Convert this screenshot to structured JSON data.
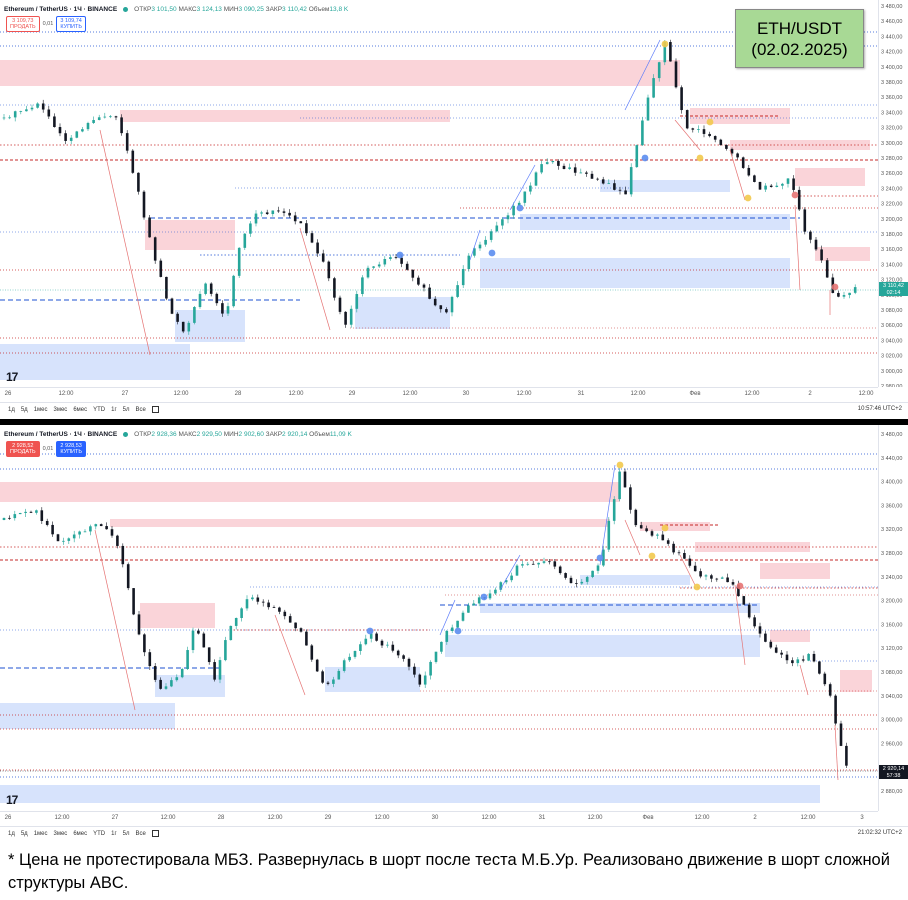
{
  "title_box": {
    "line1": "ETH/USDT",
    "line2": "(02.02.2025)"
  },
  "caption": "* Цена не протестировала МБЗ. Развернулась в шорт после теста М.Б.Ур. Реализовано движение в шорт сложной структуры ABC.",
  "colors": {
    "bull": "#26a69a",
    "bear": "#131722",
    "supply_zone": "#f8c6cc",
    "demand_zone": "#c9d9fb",
    "red_line": "#c62828",
    "blue_line": "#1e50d2",
    "price_badge": "#26a69a",
    "price_badge_bear": "#131722"
  },
  "panels": [
    {
      "symbol": "Ethereum / TetherUS · 1Ч · BINANCE",
      "ohlc": {
        "o_label": "ОТКР",
        "o": "3 101,50",
        "h_label": "МАКС",
        "h": "3 124,13",
        "l_label": "МИН",
        "l": "3 090,25",
        "c_label": "ЗАКР",
        "c": "3 110,42",
        "v_label": "Объем",
        "v": "13,8 K"
      },
      "sell": {
        "price": "3 109,73",
        "label": "ПРОДАТЬ"
      },
      "buy": {
        "price": "3 109,74",
        "label": "КУПИТЬ"
      },
      "spread": "0,01",
      "price_ticks": [
        "3 480,00",
        "3 460,00",
        "3 440,00",
        "3 420,00",
        "3 400,00",
        "3 380,00",
        "3 360,00",
        "3 340,00",
        "3 320,00",
        "3 300,00",
        "3 280,00",
        "3 260,00",
        "3 240,00",
        "3 220,00",
        "3 200,00",
        "3 180,00",
        "3 160,00",
        "3 140,00",
        "3 120,00",
        "3 100,00",
        "3 080,00",
        "3 060,00",
        "3 040,00",
        "3 020,00",
        "3 000,00",
        "2 980,00"
      ],
      "last_price": "3 110,42",
      "countdown": "02:14",
      "x_ticks": [
        {
          "t": "26",
          "x": 8
        },
        {
          "t": "12:00",
          "x": 66
        },
        {
          "t": "27",
          "x": 125
        },
        {
          "t": "12:00",
          "x": 181
        },
        {
          "t": "28",
          "x": 238
        },
        {
          "t": "12:00",
          "x": 296
        },
        {
          "t": "29",
          "x": 352
        },
        {
          "t": "12:00",
          "x": 410
        },
        {
          "t": "30",
          "x": 466
        },
        {
          "t": "12:00",
          "x": 524
        },
        {
          "t": "31",
          "x": 581
        },
        {
          "t": "12:00",
          "x": 638
        },
        {
          "t": "Фев",
          "x": 695
        },
        {
          "t": "12:00",
          "x": 752
        },
        {
          "t": "2",
          "x": 810
        },
        {
          "t": "12:00",
          "x": 866
        }
      ],
      "timeframes": [
        "1д",
        "5д",
        "1мес",
        "3мес",
        "6мес",
        "YTD",
        "1г",
        "5л",
        "Все"
      ],
      "clock": "10:57:46 UTC+2",
      "tv_logo": "17"
    },
    {
      "symbol": "Ethereum / TetherUS · 1Ч · BINANCE",
      "ohlc": {
        "o_label": "ОТКР",
        "o": "2 928,36",
        "h_label": "МАКС",
        "h": "2 929,50",
        "l_label": "МИН",
        "l": "2 902,60",
        "c_label": "ЗАКР",
        "c": "2 920,14",
        "v_label": "Объем",
        "v": "11,09 K"
      },
      "sell": {
        "price": "2 928,52",
        "label": "ПРОДАТЬ"
      },
      "buy": {
        "price": "2 928,53",
        "label": "КУПИТЬ"
      },
      "spread": "0,01",
      "price_ticks": [
        "3 480,00",
        "3 440,00",
        "3 400,00",
        "3 360,00",
        "3 320,00",
        "3 280,00",
        "3 240,00",
        "3 200,00",
        "3 160,00",
        "3 120,00",
        "3 080,00",
        "3 040,00",
        "3 000,00",
        "2 960,00",
        "2 920,00",
        "2 880,00"
      ],
      "last_price": "2 920,14",
      "countdown": "57:38",
      "x_ticks": [
        {
          "t": "26",
          "x": 8
        },
        {
          "t": "12:00",
          "x": 62
        },
        {
          "t": "27",
          "x": 115
        },
        {
          "t": "12:00",
          "x": 168
        },
        {
          "t": "28",
          "x": 221
        },
        {
          "t": "12:00",
          "x": 275
        },
        {
          "t": "29",
          "x": 328
        },
        {
          "t": "12:00",
          "x": 382
        },
        {
          "t": "30",
          "x": 435
        },
        {
          "t": "12:00",
          "x": 489
        },
        {
          "t": "31",
          "x": 542
        },
        {
          "t": "12:00",
          "x": 595
        },
        {
          "t": "Фев",
          "x": 648
        },
        {
          "t": "12:00",
          "x": 702
        },
        {
          "t": "2",
          "x": 755
        },
        {
          "t": "12:00",
          "x": 808
        },
        {
          "t": "3",
          "x": 862
        }
      ],
      "timeframes": [
        "1д",
        "5д",
        "1мес",
        "3мес",
        "6мес",
        "YTD",
        "1г",
        "5л",
        "Все"
      ],
      "clock": "21:02:32 UTC+2",
      "tv_logo": "17"
    }
  ]
}
